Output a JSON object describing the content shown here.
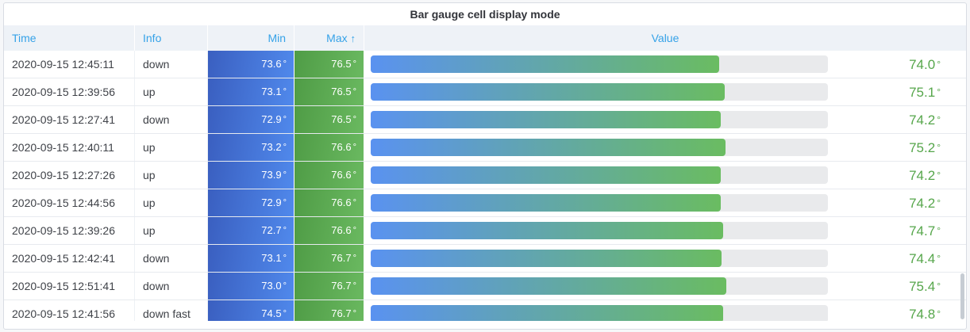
{
  "panel": {
    "title": "Bar gauge cell display mode"
  },
  "header": {
    "sort_arrow": "↑",
    "sorted_column": "Max",
    "sort_direction": "asc"
  },
  "colors": {
    "header_text": "#35a2e8",
    "value_text": "#56a64b",
    "min_cell_gradient": [
      "#3a5fc0",
      "#5089ec"
    ],
    "max_cell_gradient": [
      "#4f9c46",
      "#6ab960"
    ],
    "bar_gradient": [
      "#5a92f0",
      "#6abc61"
    ],
    "bar_track": "#e9eaec",
    "header_bg": "#eef2f7"
  },
  "chart_data": {
    "type": "table",
    "title": "Bar gauge cell display mode",
    "columns": [
      "Time",
      "Info",
      "Min",
      "Max",
      "Value"
    ],
    "unit": "°",
    "gauge": {
      "min": 0,
      "max": 97,
      "style": "horizontal bar, blue-to-green gradient on gray track"
    },
    "rows": [
      {
        "time": "2020-09-15 12:45:11",
        "info": "down",
        "min": 73.6,
        "max": 76.5,
        "value": 74.0
      },
      {
        "time": "2020-09-15 12:39:56",
        "info": "up",
        "min": 73.1,
        "max": 76.5,
        "value": 75.1
      },
      {
        "time": "2020-09-15 12:27:41",
        "info": "down",
        "min": 72.9,
        "max": 76.5,
        "value": 74.2
      },
      {
        "time": "2020-09-15 12:40:11",
        "info": "up",
        "min": 73.2,
        "max": 76.6,
        "value": 75.2
      },
      {
        "time": "2020-09-15 12:27:26",
        "info": "up",
        "min": 73.9,
        "max": 76.6,
        "value": 74.2
      },
      {
        "time": "2020-09-15 12:44:56",
        "info": "up",
        "min": 72.9,
        "max": 76.6,
        "value": 74.2
      },
      {
        "time": "2020-09-15 12:39:26",
        "info": "up",
        "min": 72.7,
        "max": 76.6,
        "value": 74.7
      },
      {
        "time": "2020-09-15 12:42:41",
        "info": "down",
        "min": 73.1,
        "max": 76.7,
        "value": 74.4
      },
      {
        "time": "2020-09-15 12:51:41",
        "info": "down",
        "min": 73.0,
        "max": 76.7,
        "value": 75.4
      },
      {
        "time": "2020-09-15 12:41:56",
        "info": "down fast",
        "min": 74.5,
        "max": 76.7,
        "value": 74.8
      }
    ]
  }
}
